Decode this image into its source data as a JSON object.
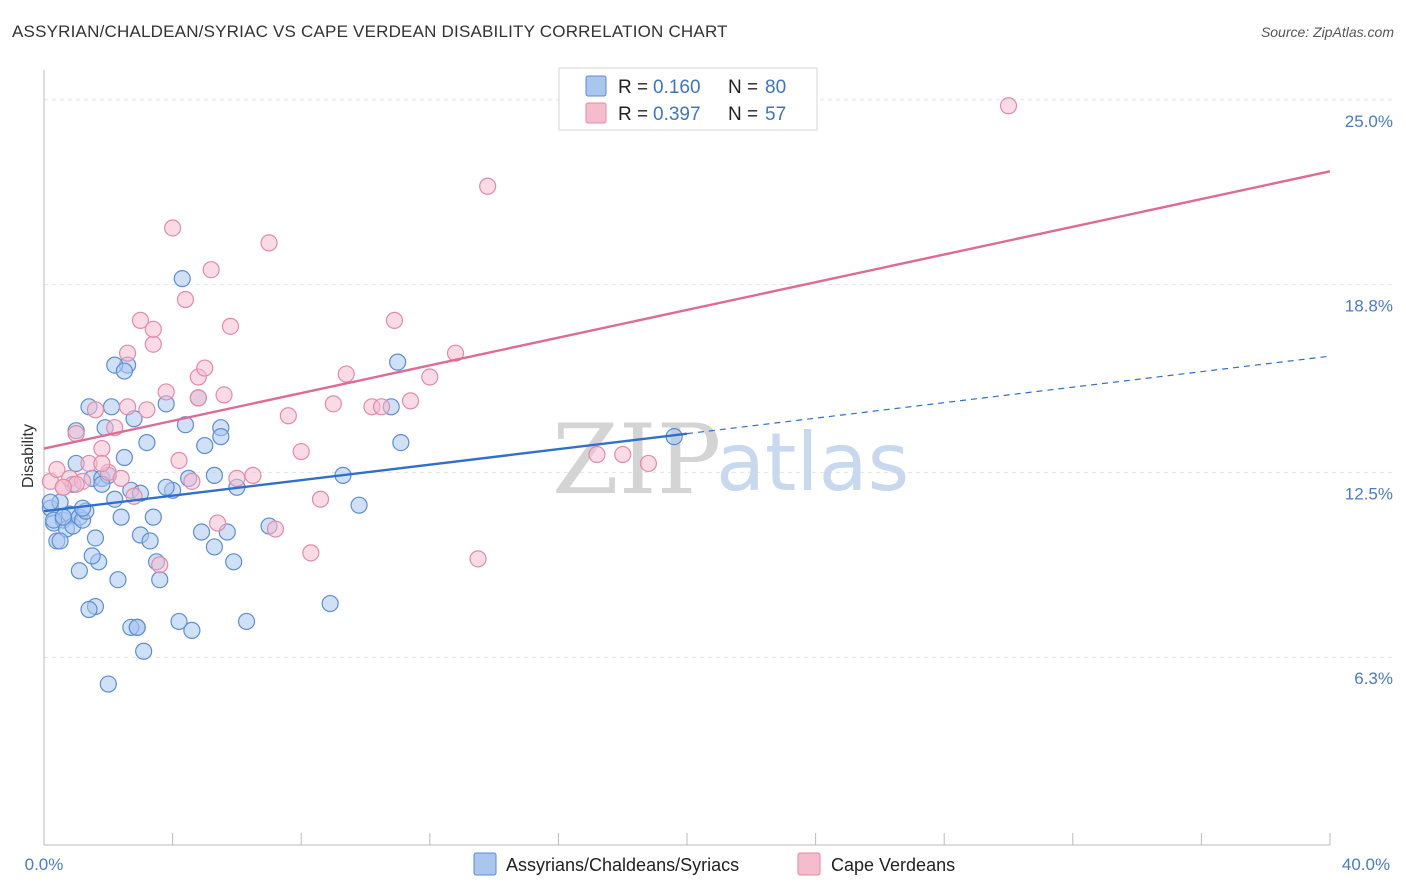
{
  "title": "ASSYRIAN/CHALDEAN/SYRIAC VS CAPE VERDEAN DISABILITY CORRELATION CHART",
  "source": "Source: ZipAtlas.com",
  "watermark": {
    "zip": "ZIP",
    "atlas": "atlas"
  },
  "colors": {
    "blue_fill": "#a9c7ee",
    "blue_stroke": "#5b8ed6",
    "blue_line": "#2e6fcf",
    "pink_fill": "#f5bccd",
    "pink_stroke": "#e58aa6",
    "pink_line": "#e06a93",
    "grid": "#e3e3e3",
    "tick_text": "#4a7bc8"
  },
  "legend_box": {
    "rows": [
      {
        "r_label": "R = ",
        "r_value": "0.160",
        "n_label": "N = ",
        "n_value": "80"
      },
      {
        "r_label": "R = ",
        "r_value": "0.397",
        "n_label": "N = ",
        "n_value": "57"
      }
    ]
  },
  "chart_data": {
    "type": "scatter",
    "title": "ASSYRIAN/CHALDEAN/SYRIAC VS CAPE VERDEAN DISABILITY CORRELATION CHART",
    "xlabel": "",
    "ylabel": "Disability",
    "xlim": [
      0,
      40
    ],
    "ylim": [
      0,
      26
    ],
    "x_tick_labels": [
      "0.0%",
      "40.0%"
    ],
    "y_ticks": [
      6.3,
      12.5,
      18.8,
      25.0
    ],
    "y_tick_labels": [
      "6.3%",
      "12.5%",
      "18.8%",
      "25.0%"
    ],
    "grid": true,
    "legend_placement": "top-center",
    "series": [
      {
        "name": "Assyrians/Chaldeans/Syriacs",
        "r": 0.16,
        "n": 80,
        "trend": {
          "x0": 0,
          "y0": 11.2,
          "x1": 20,
          "y1": 13.8,
          "dashed_to": {
            "x": 40,
            "y": 16.4
          }
        },
        "points": [
          [
            0.2,
            11.3
          ],
          [
            0.3,
            10.8
          ],
          [
            0.4,
            10.2
          ],
          [
            0.5,
            11.5
          ],
          [
            0.6,
            10.9
          ],
          [
            0.7,
            10.6
          ],
          [
            0.8,
            11.1
          ],
          [
            0.9,
            10.7
          ],
          [
            1.0,
            12.8
          ],
          [
            1.1,
            11.0
          ],
          [
            1.2,
            10.9
          ],
          [
            1.3,
            11.2
          ],
          [
            1.4,
            14.7
          ],
          [
            1.5,
            12.3
          ],
          [
            1.6,
            10.3
          ],
          [
            1.7,
            9.5
          ],
          [
            1.8,
            12.3
          ],
          [
            1.9,
            14.0
          ],
          [
            2.0,
            12.4
          ],
          [
            2.1,
            14.7
          ],
          [
            2.2,
            11.6
          ],
          [
            2.3,
            8.9
          ],
          [
            2.4,
            11.0
          ],
          [
            2.5,
            13.0
          ],
          [
            2.6,
            16.1
          ],
          [
            2.7,
            11.9
          ],
          [
            2.8,
            14.3
          ],
          [
            2.9,
            7.3
          ],
          [
            3.0,
            10.4
          ],
          [
            3.1,
            6.5
          ],
          [
            3.2,
            13.5
          ],
          [
            3.3,
            10.2
          ],
          [
            3.5,
            9.5
          ],
          [
            3.6,
            8.9
          ],
          [
            3.8,
            14.8
          ],
          [
            4.0,
            11.9
          ],
          [
            4.2,
            7.5
          ],
          [
            4.4,
            14.1
          ],
          [
            4.6,
            7.2
          ],
          [
            4.8,
            15.0
          ],
          [
            5.0,
            13.4
          ],
          [
            5.3,
            12.4
          ],
          [
            5.5,
            14.0
          ],
          [
            5.7,
            10.5
          ],
          [
            5.9,
            9.5
          ],
          [
            6.0,
            12.0
          ],
          [
            6.3,
            7.5
          ],
          [
            0.5,
            10.2
          ],
          [
            1.0,
            13.9
          ],
          [
            1.6,
            8.0
          ],
          [
            2.2,
            16.1
          ],
          [
            2.5,
            15.9
          ],
          [
            4.3,
            19.0
          ],
          [
            4.5,
            12.3
          ],
          [
            5.5,
            13.7
          ],
          [
            7.0,
            10.7
          ],
          [
            8.9,
            8.1
          ],
          [
            9.3,
            12.4
          ],
          [
            9.8,
            11.4
          ],
          [
            10.8,
            14.7
          ],
          [
            11.1,
            13.5
          ],
          [
            19.6,
            13.7
          ],
          [
            11.0,
            16.2
          ],
          [
            0.3,
            10.9
          ],
          [
            0.6,
            11.0
          ],
          [
            1.1,
            9.2
          ],
          [
            1.5,
            9.7
          ],
          [
            1.4,
            7.9
          ],
          [
            2.7,
            7.3
          ],
          [
            3.4,
            11.0
          ],
          [
            4.9,
            10.5
          ],
          [
            5.3,
            10.0
          ],
          [
            1.8,
            12.1
          ],
          [
            3.0,
            11.8
          ],
          [
            0.9,
            12.1
          ],
          [
            2.0,
            5.4
          ],
          [
            3.8,
            12.0
          ],
          [
            0.2,
            11.5
          ],
          [
            1.2,
            11.3
          ],
          [
            2.9,
            7.3
          ]
        ]
      },
      {
        "name": "Cape Verdeans",
        "r": 0.397,
        "n": 57,
        "trend": {
          "x0": 0,
          "y0": 13.3,
          "x1": 40,
          "y1": 22.6
        },
        "points": [
          [
            0.2,
            12.2
          ],
          [
            0.4,
            12.6
          ],
          [
            0.6,
            12.0
          ],
          [
            0.8,
            12.3
          ],
          [
            1.0,
            13.8
          ],
          [
            1.2,
            12.2
          ],
          [
            1.4,
            12.8
          ],
          [
            1.6,
            14.6
          ],
          [
            1.8,
            13.3
          ],
          [
            2.0,
            12.5
          ],
          [
            2.2,
            14.0
          ],
          [
            2.4,
            12.3
          ],
          [
            2.6,
            14.7
          ],
          [
            2.8,
            11.7
          ],
          [
            3.0,
            17.6
          ],
          [
            3.2,
            14.6
          ],
          [
            3.4,
            16.8
          ],
          [
            3.6,
            9.4
          ],
          [
            3.8,
            15.2
          ],
          [
            4.0,
            20.7
          ],
          [
            4.2,
            12.9
          ],
          [
            4.4,
            18.3
          ],
          [
            4.6,
            12.2
          ],
          [
            4.8,
            15.7
          ],
          [
            5.0,
            16.0
          ],
          [
            5.2,
            19.3
          ],
          [
            5.4,
            10.8
          ],
          [
            5.6,
            15.1
          ],
          [
            5.8,
            17.4
          ],
          [
            6.0,
            12.3
          ],
          [
            6.5,
            12.4
          ],
          [
            7.0,
            20.2
          ],
          [
            7.2,
            10.6
          ],
          [
            7.6,
            14.4
          ],
          [
            8.0,
            13.2
          ],
          [
            8.3,
            9.8
          ],
          [
            8.6,
            11.6
          ],
          [
            9.0,
            14.8
          ],
          [
            9.4,
            15.8
          ],
          [
            10.2,
            14.7
          ],
          [
            10.5,
            14.7
          ],
          [
            10.9,
            17.6
          ],
          [
            11.4,
            14.9
          ],
          [
            12.0,
            15.7
          ],
          [
            12.8,
            16.5
          ],
          [
            13.5,
            9.6
          ],
          [
            13.8,
            22.1
          ],
          [
            18.0,
            13.1
          ],
          [
            17.2,
            13.1
          ],
          [
            18.8,
            12.8
          ],
          [
            30.0,
            24.8
          ],
          [
            1.0,
            12.1
          ],
          [
            2.6,
            16.5
          ],
          [
            3.4,
            17.3
          ],
          [
            1.8,
            12.8
          ],
          [
            0.6,
            12.0
          ],
          [
            4.8,
            15.0
          ]
        ]
      }
    ]
  },
  "bottom_legend": [
    {
      "label": "Assyrians/Chaldeans/Syriacs"
    },
    {
      "label": "Cape Verdeans"
    }
  ]
}
